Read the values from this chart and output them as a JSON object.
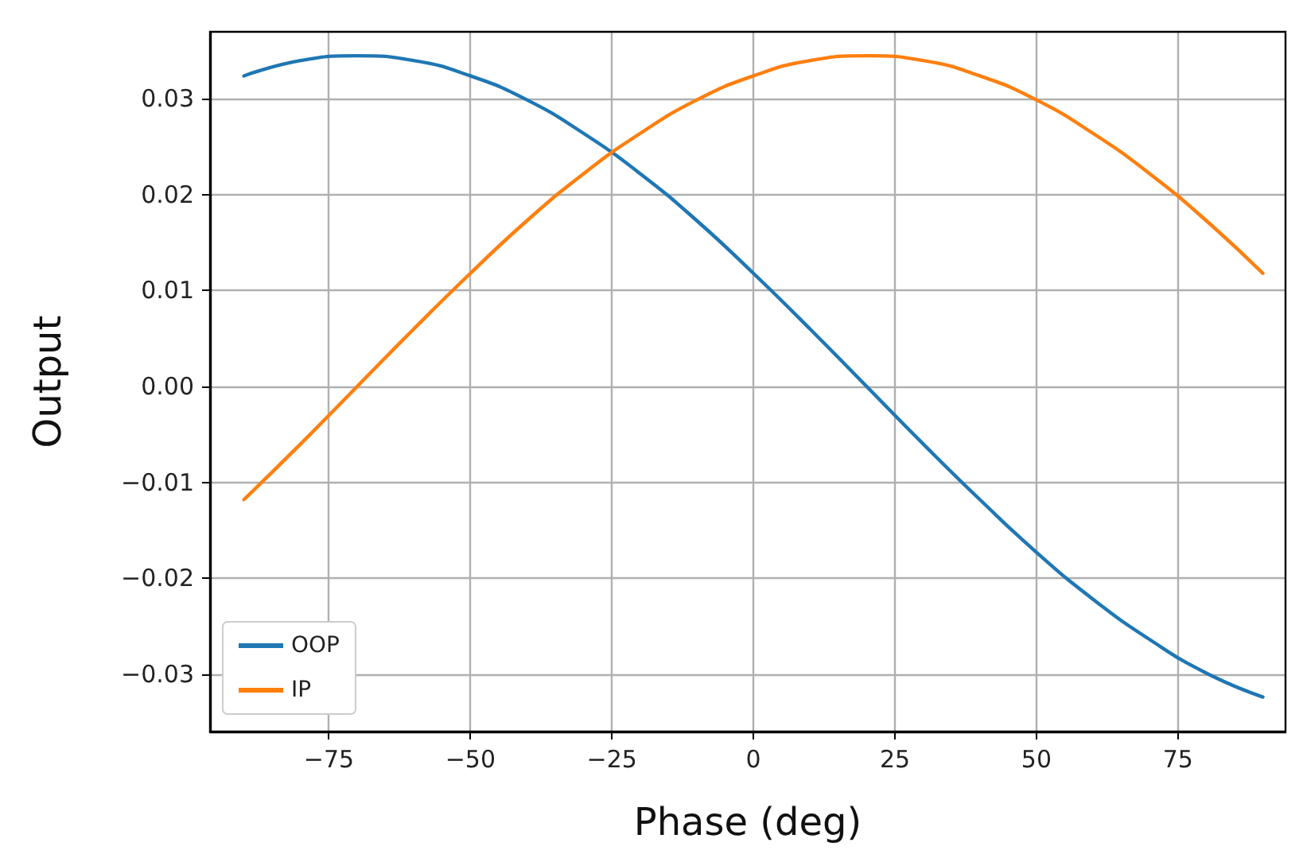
{
  "chart_data": {
    "type": "line",
    "xlabel": "Phase (deg)",
    "ylabel": "Output",
    "x": [
      -90,
      -80,
      -70,
      -60,
      -50,
      -40,
      -30,
      -20,
      -10,
      0,
      10,
      20,
      30,
      40,
      50,
      60,
      70,
      80,
      90
    ],
    "series": [
      {
        "name": "OOP",
        "color": "#1f77b4",
        "values": [
          0.0324,
          0.034,
          0.0345,
          0.034,
          0.0324,
          0.0299,
          0.0264,
          0.0222,
          0.0173,
          0.0118,
          0.006,
          0,
          -0.006,
          -0.0118,
          -0.0173,
          -0.0222,
          -0.0264,
          -0.0299,
          -0.0324
        ]
      },
      {
        "name": "IP",
        "color": "#ff7f0e",
        "values": [
          -0.0118,
          -0.006,
          0,
          0.006,
          0.0118,
          0.0173,
          0.0222,
          0.0264,
          0.0299,
          0.0324,
          0.034,
          0.0345,
          0.034,
          0.0324,
          0.0299,
          0.0264,
          0.0222,
          0.0173,
          0.0118
        ]
      }
    ],
    "xlim": [
      -96,
      94
    ],
    "xticks": [
      {
        "value": -75,
        "label": "−75"
      },
      {
        "value": -50,
        "label": "−50"
      },
      {
        "value": -25,
        "label": "−25"
      },
      0,
      25,
      50,
      75
    ],
    "ylim": [
      -0.036,
      0.037
    ],
    "yticks": [
      {
        "value": -0.03,
        "label": "−0.03"
      },
      {
        "value": -0.02,
        "label": "−0.02"
      },
      {
        "value": -0.01,
        "label": "−0.01"
      },
      {
        "value": 0,
        "label": "0.00"
      },
      {
        "value": 0.01,
        "label": "0.01"
      },
      {
        "value": 0.02,
        "label": "0.02"
      },
      {
        "value": 0.03,
        "label": "0.03"
      }
    ],
    "grid": true,
    "legend": "bottom left",
    "line_style": "solid",
    "marker": "none"
  }
}
